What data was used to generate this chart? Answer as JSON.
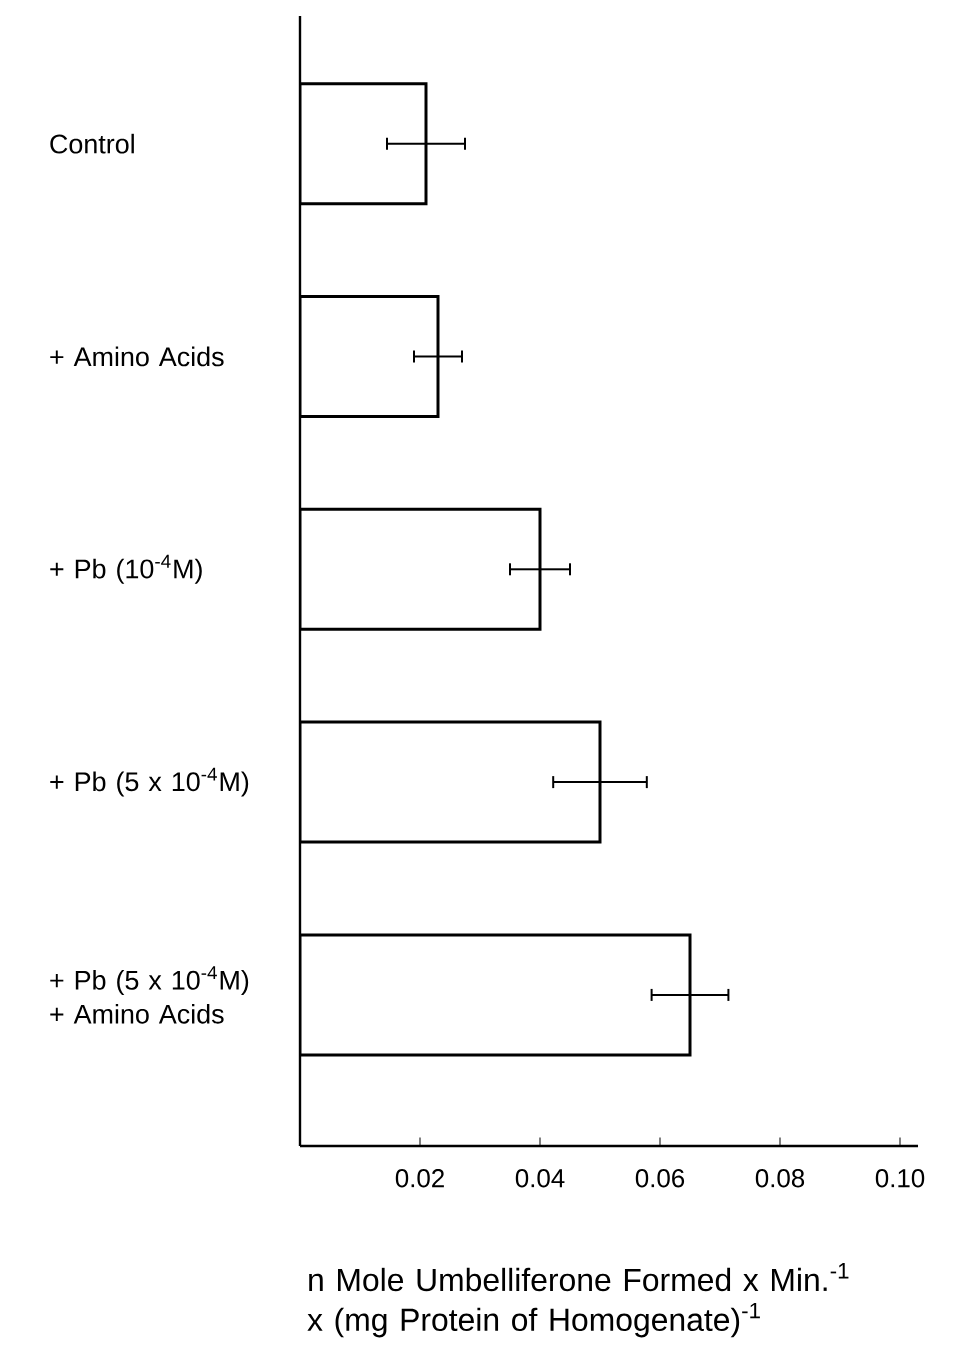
{
  "chart_data": {
    "type": "bar",
    "orientation": "horizontal",
    "categories": [
      "Control",
      "+ Amino Acids",
      "+ Pb (10$^{-4}$M)",
      "+ Pb (5 x 10$^{-4}$M)",
      "+ Pb (5 x 10$^{-4}$M) + Amino Acids"
    ],
    "values": [
      0.021,
      0.023,
      0.04,
      0.05,
      0.065
    ],
    "errors": [
      0.0065,
      0.004,
      0.005,
      0.0078,
      0.0064
    ],
    "color": "#ffffff",
    "xlim": [
      0,
      0.103
    ],
    "xticks": [
      0.02,
      0.04,
      0.06,
      0.08,
      {
        "value": 0.1,
        "label": "0.10"
      }
    ],
    "xlabel": "n Mole Umbelliferone Formed x Min.$^{-1}$ x (mg Protein of Homogenate)$^{-1}$"
  }
}
